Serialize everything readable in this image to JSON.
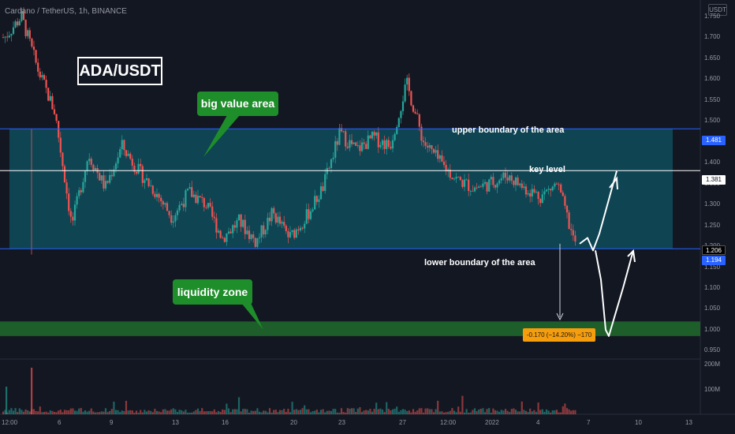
{
  "header": {
    "symbol_line": "Cardano / TetherUS, 1h, BINANCE",
    "currency": "USDT"
  },
  "annotations": {
    "title": "ADA/USDT",
    "big_value_area": "big value area",
    "liquidity_zone": "liquidity zone",
    "upper_boundary": "upper boundary of the area",
    "key_level": "key level",
    "lower_boundary": "lower boundary of the area",
    "measure_label": "-0.170 (−14.20%) −170"
  },
  "price_axis": {
    "ticks": [
      "1.750",
      "1.700",
      "1.650",
      "1.600",
      "1.550",
      "1.500",
      "1.450",
      "1.400",
      "1.350",
      "1.300",
      "1.250",
      "1.200",
      "1.150",
      "1.100",
      "1.050",
      "1.000",
      "0.950"
    ],
    "volume_ticks": [
      "200M",
      "100M"
    ],
    "tags": {
      "upper": "1.481",
      "key": "1.381",
      "current": "1.206",
      "lower": "1.194"
    }
  },
  "time_axis": {
    "labels": [
      "12:00",
      "6",
      "9",
      "13",
      "16",
      "20",
      "23",
      "27",
      "12:00",
      "2022",
      "4",
      "7",
      "10",
      "13"
    ]
  },
  "colors": {
    "background": "#131722",
    "box_fill": "#0f4c5c",
    "boundary_line": "#2962ff",
    "liquidity_fill": "#1d5e2a",
    "up_candle": "#26a69a",
    "down_candle": "#ef5350",
    "callout": "#1e8e2a",
    "measure": "#f59d0c"
  },
  "chart_data": {
    "type": "candlestick",
    "symbol": "ADA/USDT",
    "interval": "1h",
    "exchange": "BINANCE",
    "ylim": [
      0.93,
      1.78
    ],
    "levels": {
      "upper_boundary": 1.481,
      "key_level": 1.381,
      "lower_boundary": 1.194,
      "current_price": 1.206,
      "liquidity_zone": [
        0.985,
        1.02
      ]
    },
    "measure": {
      "change": -0.17,
      "percent": -14.2
    },
    "close_path": [
      {
        "x": "Dec 1 06:00",
        "y": 1.7
      },
      {
        "x": "Dec 1 12:00",
        "y": 1.75
      },
      {
        "x": "Dec 2",
        "y": 1.62
      },
      {
        "x": "Dec 3",
        "y": 1.52
      },
      {
        "x": "Dec 4",
        "y": 1.25
      },
      {
        "x": "Dec 5",
        "y": 1.42
      },
      {
        "x": "Dec 6",
        "y": 1.34
      },
      {
        "x": "Dec 7",
        "y": 1.44
      },
      {
        "x": "Dec 8",
        "y": 1.38
      },
      {
        "x": "Dec 9",
        "y": 1.33
      },
      {
        "x": "Dec 10",
        "y": 1.27
      },
      {
        "x": "Dec 12",
        "y": 1.33
      },
      {
        "x": "Dec 13",
        "y": 1.3
      },
      {
        "x": "Dec 14",
        "y": 1.22
      },
      {
        "x": "Dec 16",
        "y": 1.26
      },
      {
        "x": "Dec 17",
        "y": 1.21
      },
      {
        "x": "Dec 19",
        "y": 1.28
      },
      {
        "x": "Dec 20",
        "y": 1.22
      },
      {
        "x": "Dec 21",
        "y": 1.27
      },
      {
        "x": "Dec 22",
        "y": 1.34
      },
      {
        "x": "Dec 23",
        "y": 1.47
      },
      {
        "x": "Dec 24",
        "y": 1.43
      },
      {
        "x": "Dec 25",
        "y": 1.46
      },
      {
        "x": "Dec 26",
        "y": 1.44
      },
      {
        "x": "Dec 27",
        "y": 1.59
      },
      {
        "x": "Dec 28",
        "y": 1.45
      },
      {
        "x": "Dec 29",
        "y": 1.4
      },
      {
        "x": "Dec 30",
        "y": 1.36
      },
      {
        "x": "Dec 31",
        "y": 1.34
      },
      {
        "x": "Jan 1",
        "y": 1.35
      },
      {
        "x": "Jan 2",
        "y": 1.37
      },
      {
        "x": "Jan 3",
        "y": 1.34
      },
      {
        "x": "Jan 4",
        "y": 1.32
      },
      {
        "x": "Jan 5",
        "y": 1.35
      },
      {
        "x": "Jan 6",
        "y": 1.21
      }
    ],
    "projection": [
      1.206,
      1.22,
      1.3,
      1.38,
      1.2,
      1.0,
      1.19
    ]
  }
}
